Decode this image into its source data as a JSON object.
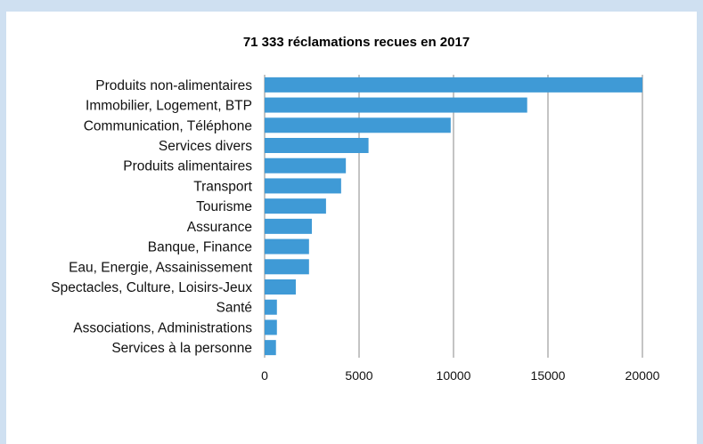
{
  "chart_data": {
    "type": "bar",
    "orientation": "horizontal",
    "title": "71 333 réclamations recues en 2017",
    "xlabel": "",
    "ylabel": "",
    "xlim": [
      0,
      20000
    ],
    "xticks": [
      0,
      5000,
      10000,
      15000,
      20000
    ],
    "grid": "vertical",
    "legend": "none",
    "bar_color": "#3f9ad6",
    "categories": [
      "Produits non-alimentaires",
      "Immobilier, Logement, BTP",
      "Communication, Téléphone",
      "Services divers",
      "Produits alimentaires",
      "Transport",
      "Tourisme",
      "Assurance",
      "Banque, Finance",
      "Eau, Energie, Assainissement",
      "Spectacles, Culture, Loisirs-Jeux",
      "Santé",
      "Associations, Administrations",
      "Services à la personne"
    ],
    "values": [
      20000,
      13900,
      9850,
      5500,
      4300,
      4050,
      3250,
      2500,
      2350,
      2350,
      1650,
      650,
      650,
      600
    ]
  }
}
